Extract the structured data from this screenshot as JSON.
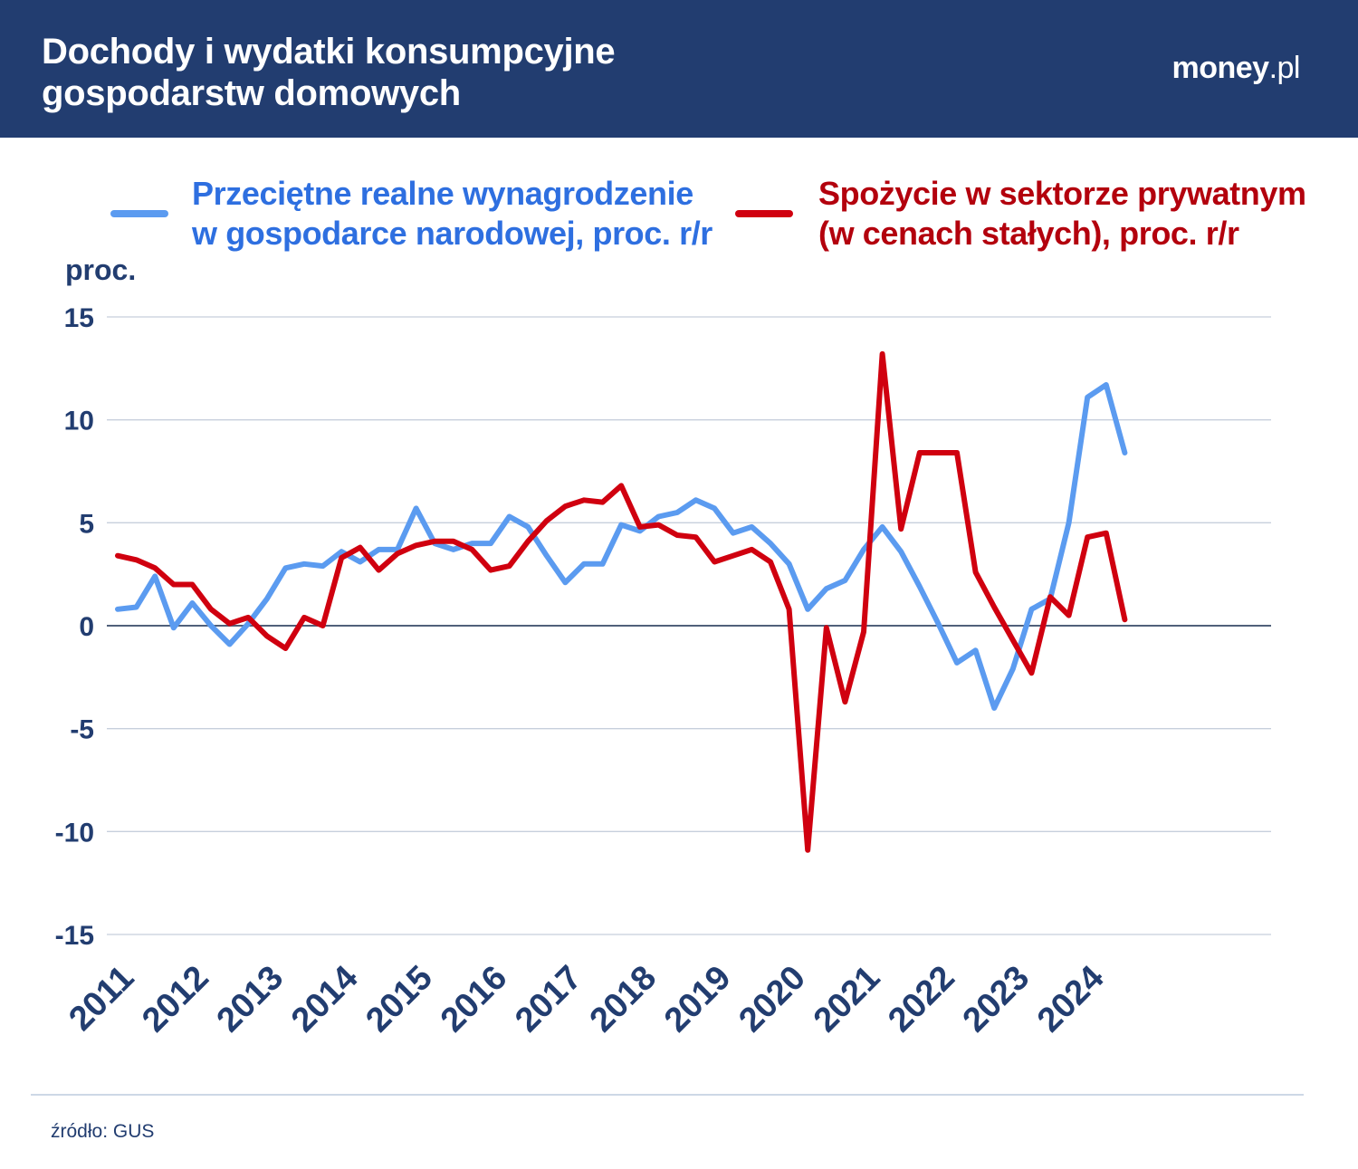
{
  "header": {
    "title_line1": "Dochody i wydatki konsumpcyjne",
    "title_line2": "gospodarstw domowych",
    "brand_bold": "money",
    "brand_light": ".pl"
  },
  "colors": {
    "header_bg": "#223d70",
    "wages": "#5b9bf0",
    "consumption": "#d0000f",
    "text_dark": "#223d70",
    "grid": "#c7cfdc",
    "zero": "#50607a"
  },
  "legend": {
    "wages_line1": "Przeciętne realne wynagrodzenie",
    "wages_line2": "w gospodarce narodowej, proc. r/r",
    "consumption_line1": "Spożycie w sektorze prywatnym",
    "consumption_line2": "(w cenach stałych), proc. r/r"
  },
  "footer": {
    "source": "źródło: GUS"
  },
  "chart_data": {
    "type": "line",
    "ylabel": "proc.",
    "ylim": [
      -15,
      15
    ],
    "yticks": [
      15,
      10,
      5,
      0,
      -5,
      -10,
      -15
    ],
    "ytick_labels": [
      "15",
      "10",
      "5",
      "0",
      "-5",
      "-10",
      "-15"
    ],
    "x_labels": [
      "2011",
      "2012",
      "2013",
      "2014",
      "2015",
      "2016",
      "2017",
      "2018",
      "2019",
      "2020",
      "2021",
      "2022",
      "2023",
      "2024"
    ],
    "x_label_quarter_index": [
      0,
      4,
      8,
      12,
      16,
      20,
      24,
      28,
      32,
      36,
      40,
      44,
      48,
      52
    ],
    "n_quarters": 56,
    "grid": true,
    "legend_position": "top",
    "series": [
      {
        "name": "Przeciętne realne wynagrodzenie w gospodarce narodowej, proc. r/r",
        "color": "#5b9bf0",
        "values": [
          0.8,
          0.9,
          2.4,
          -0.1,
          1.1,
          0.0,
          -0.9,
          0.1,
          1.3,
          2.8,
          3.0,
          2.9,
          3.6,
          3.1,
          3.7,
          3.7,
          5.7,
          4.0,
          3.7,
          4.0,
          4.0,
          5.3,
          4.8,
          3.4,
          2.1,
          3.0,
          3.0,
          4.9,
          4.6,
          5.3,
          5.5,
          6.1,
          5.7,
          4.5,
          4.8,
          4.0,
          3.0,
          0.8,
          1.8,
          2.2,
          3.7,
          4.8,
          3.6,
          1.9,
          0.1,
          -1.8,
          -1.2,
          -4.0,
          -2.1,
          0.8,
          1.3,
          5.0,
          11.1,
          11.7,
          8.4
        ]
      },
      {
        "name": "Spożycie w sektorze prywatnym (w cenach stałych), proc. r/r",
        "color": "#d0000f",
        "values": [
          3.4,
          3.2,
          2.8,
          2.0,
          2.0,
          0.8,
          0.1,
          0.4,
          -0.5,
          -1.1,
          0.4,
          0.0,
          3.3,
          3.8,
          2.7,
          3.5,
          3.9,
          4.1,
          4.1,
          3.7,
          2.7,
          2.9,
          4.1,
          5.1,
          5.8,
          6.1,
          6.0,
          6.8,
          4.8,
          4.9,
          4.4,
          4.3,
          3.1,
          3.4,
          3.7,
          3.1,
          0.8,
          -10.9,
          -0.1,
          -3.7,
          -0.3,
          13.2,
          4.7,
          8.4,
          8.4,
          8.4,
          2.6,
          0.9,
          -0.7,
          -2.3,
          1.4,
          0.5,
          4.3,
          4.5,
          0.3
        ]
      }
    ]
  }
}
